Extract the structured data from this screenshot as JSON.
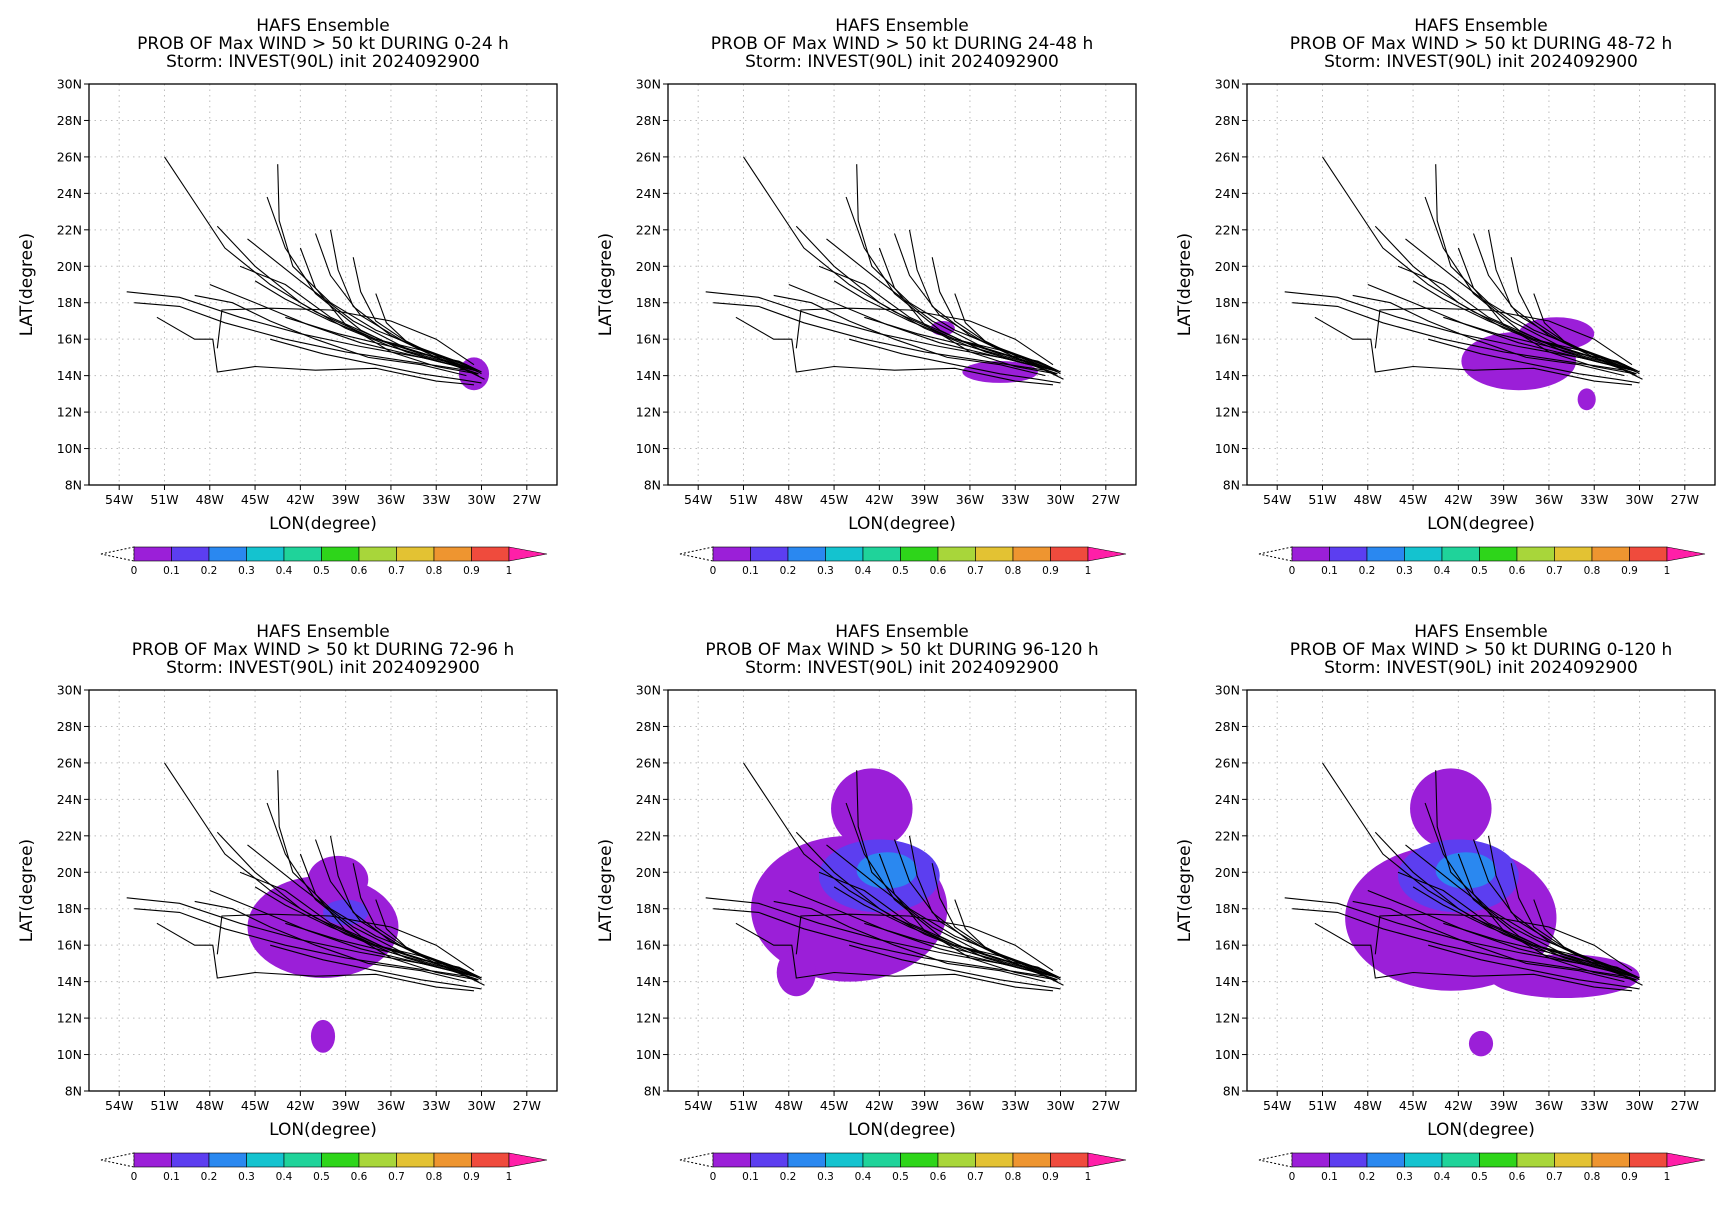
{
  "palette": {
    "fill": "#9b1fd8",
    "fill_mid": "#5c3ef0",
    "fill_high": "#2a88f0",
    "track": "#000000",
    "grid": "#bdbdbd",
    "colorbar": [
      "#9b1fd8",
      "#5c3ef0",
      "#2a88f0",
      "#14c3cf",
      "#1fd39a",
      "#2ed51a",
      "#a8d63a",
      "#e3c233",
      "#ee9530",
      "#ef4b3d"
    ],
    "colorbar_over": "#ff1fa8"
  },
  "common": {
    "title_line1": "HAFS Ensemble",
    "title_line3": "Storm: INVEST(90L) init 2024092900",
    "xlabel": "LON(degree)",
    "ylabel": "LAT(degree)",
    "xticks": [
      "54W",
      "51W",
      "48W",
      "45W",
      "42W",
      "39W",
      "36W",
      "33W",
      "30W",
      "27W"
    ],
    "yticks": [
      "8N",
      "10N",
      "12N",
      "14N",
      "16N",
      "18N",
      "20N",
      "22N",
      "24N",
      "26N",
      "28N",
      "30N"
    ],
    "colorbar_ticks": [
      "0",
      "0.1",
      "0.2",
      "0.3",
      "0.4",
      "0.5",
      "0.6",
      "0.7",
      "0.8",
      "0.9",
      "1"
    ]
  },
  "chart_data": [
    {
      "type": "heatmap",
      "title": "PROB OF Max WIND > 50 kt DURING  0-24 h",
      "xlim": [
        -56,
        -25
      ],
      "ylim": [
        8,
        30
      ],
      "grid": true,
      "blobs": [
        {
          "lon": -30.5,
          "lat": 14.1,
          "rlon": 1.0,
          "rlat": 0.9,
          "value": 0.05
        }
      ]
    },
    {
      "type": "heatmap",
      "title": "PROB OF Max WIND > 50 kt DURING 24-48 h",
      "xlim": [
        -56,
        -25
      ],
      "ylim": [
        8,
        30
      ],
      "grid": true,
      "blobs": [
        {
          "lon": -34.0,
          "lat": 14.2,
          "rlon": 2.5,
          "rlat": 0.6,
          "value": 0.05
        },
        {
          "lon": -37.8,
          "lat": 16.6,
          "rlon": 0.8,
          "rlat": 0.4,
          "value": 0.05
        }
      ]
    },
    {
      "type": "heatmap",
      "title": "PROB OF Max WIND > 50 kt DURING 48-72 h",
      "xlim": [
        -56,
        -25
      ],
      "ylim": [
        8,
        30
      ],
      "grid": true,
      "blobs": [
        {
          "lon": -38.0,
          "lat": 14.8,
          "rlon": 3.8,
          "rlat": 1.6,
          "value": 0.05
        },
        {
          "lon": -35.5,
          "lat": 16.3,
          "rlon": 2.5,
          "rlat": 0.9,
          "value": 0.05
        },
        {
          "lon": -33.5,
          "lat": 12.7,
          "rlon": 0.6,
          "rlat": 0.6,
          "value": 0.05
        }
      ]
    },
    {
      "type": "heatmap",
      "title": "PROB OF Max WIND > 50 kt DURING 72-96 h",
      "xlim": [
        -56,
        -25
      ],
      "ylim": [
        8,
        30
      ],
      "grid": true,
      "blobs": [
        {
          "lon": -40.5,
          "lat": 17.0,
          "rlon": 5.0,
          "rlat": 2.8,
          "value": 0.05
        },
        {
          "lon": -39.5,
          "lat": 19.6,
          "rlon": 2.0,
          "rlat": 1.3,
          "value": 0.05
        },
        {
          "lon": -39.0,
          "lat": 17.8,
          "rlon": 1.5,
          "rlat": 0.7,
          "value": 0.15
        },
        {
          "lon": -40.5,
          "lat": 11.0,
          "rlon": 0.8,
          "rlat": 0.9,
          "value": 0.05
        }
      ]
    },
    {
      "type": "heatmap",
      "title": "PROB OF Max WIND > 50 kt DURING 96-120 h",
      "xlim": [
        -56,
        -25
      ],
      "ylim": [
        8,
        30
      ],
      "grid": true,
      "blobs": [
        {
          "lon": -44.0,
          "lat": 18.0,
          "rlon": 6.5,
          "rlat": 4.0,
          "value": 0.05
        },
        {
          "lon": -42.5,
          "lat": 23.5,
          "rlon": 2.7,
          "rlat": 2.2,
          "value": 0.05
        },
        {
          "lon": -42.0,
          "lat": 19.8,
          "rlon": 4.0,
          "rlat": 2.0,
          "value": 0.15
        },
        {
          "lon": -41.5,
          "lat": 20.1,
          "rlon": 2.0,
          "rlat": 1.0,
          "value": 0.25
        },
        {
          "lon": -47.5,
          "lat": 14.5,
          "rlon": 1.3,
          "rlat": 1.3,
          "value": 0.05
        }
      ]
    },
    {
      "type": "heatmap",
      "title": "PROB OF Max WIND > 50 kt DURING 0-120 h",
      "xlim": [
        -56,
        -25
      ],
      "ylim": [
        8,
        30
      ],
      "grid": true,
      "blobs": [
        {
          "lon": -42.5,
          "lat": 17.5,
          "rlon": 7.0,
          "rlat": 4.0,
          "value": 0.05
        },
        {
          "lon": -42.5,
          "lat": 23.5,
          "rlon": 2.7,
          "rlat": 2.2,
          "value": 0.05
        },
        {
          "lon": -35.0,
          "lat": 14.3,
          "rlon": 5.0,
          "rlat": 1.2,
          "value": 0.05
        },
        {
          "lon": -42.0,
          "lat": 19.8,
          "rlon": 4.0,
          "rlat": 2.0,
          "value": 0.15
        },
        {
          "lon": -41.5,
          "lat": 20.1,
          "rlon": 2.0,
          "rlat": 1.0,
          "value": 0.25
        },
        {
          "lon": -40.5,
          "lat": 10.6,
          "rlon": 0.8,
          "rlat": 0.7,
          "value": 0.05
        }
      ]
    }
  ]
}
